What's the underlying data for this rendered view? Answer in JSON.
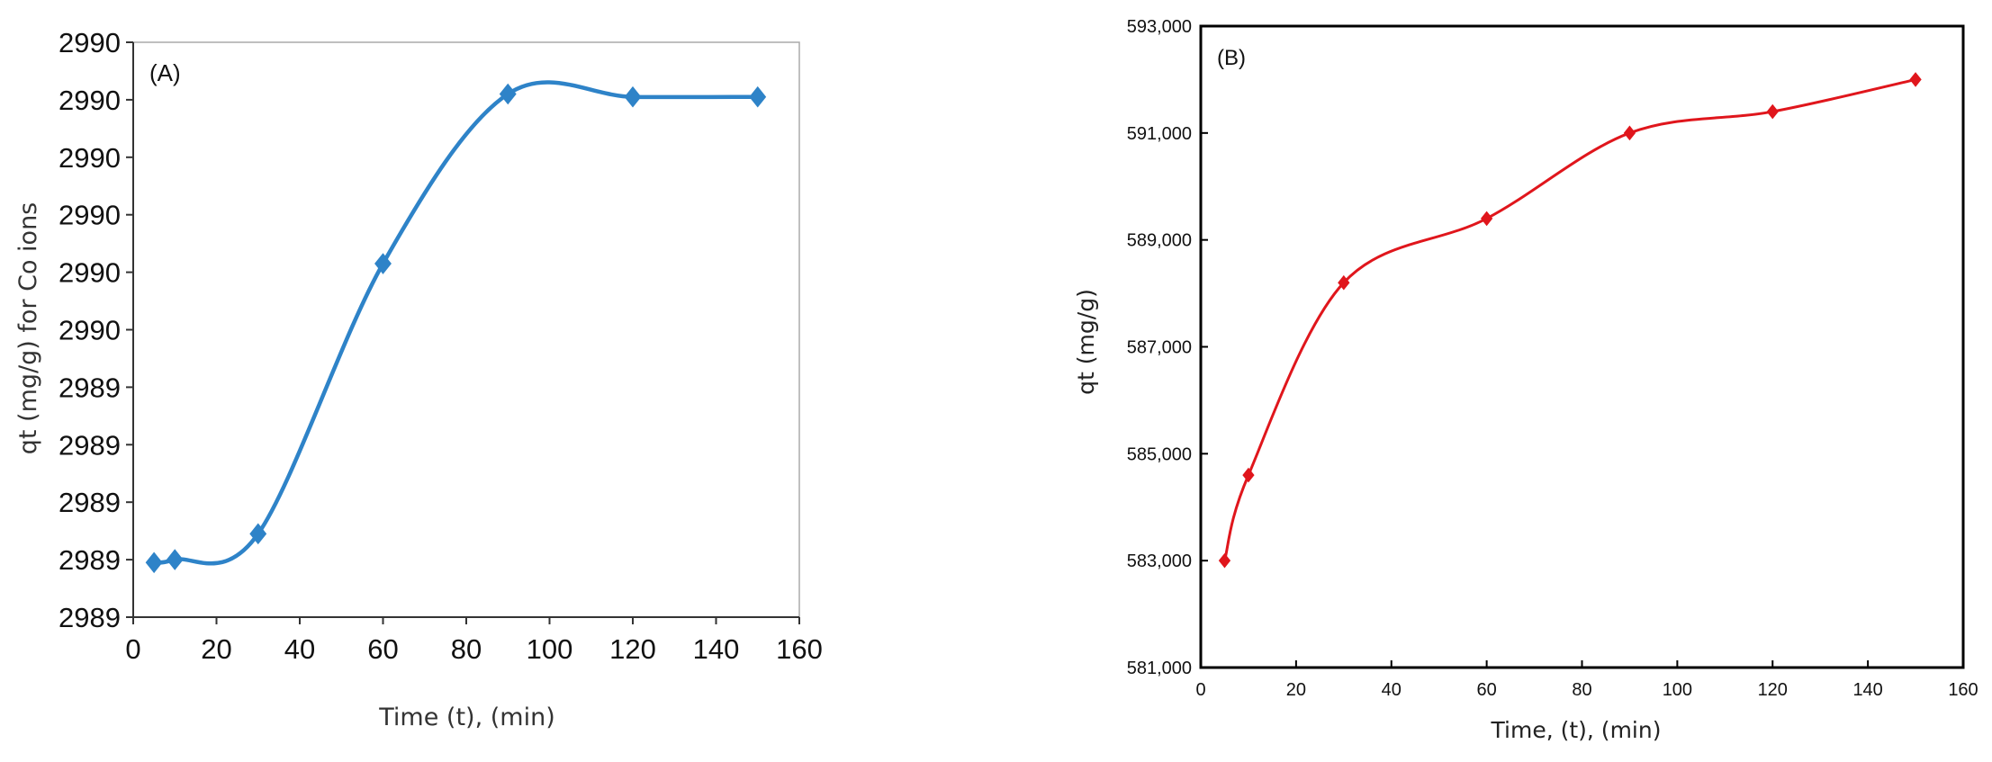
{
  "chart_data": [
    {
      "type": "line",
      "panel_label": "(A)",
      "xlabel": "Time (t), (min)",
      "ylabel": "qt (mg/g) for Co ions",
      "xlim": [
        0,
        160
      ],
      "x_ticks": [
        "0",
        "20",
        "40",
        "60",
        "80",
        "100",
        "120",
        "140",
        "160"
      ],
      "y_ticks": [
        "2989",
        "2989",
        "2989",
        "2989",
        "2989",
        "2990",
        "2990",
        "2990",
        "2990",
        "2990",
        "2990"
      ],
      "ylim": [
        2988.8,
        2990.8
      ],
      "grid": false,
      "smooth": true,
      "marker": "diamond",
      "color": "#2e83c8",
      "series": [
        {
          "x": [
            5,
            10,
            30,
            60,
            90,
            120,
            150
          ],
          "y": [
            2988.99,
            2989.0,
            2989.09,
            2990.03,
            2990.62,
            2990.61,
            2990.61
          ]
        }
      ]
    },
    {
      "type": "line",
      "panel_label": "(B)",
      "xlabel": "Time, (t), (min)",
      "ylabel": "qt (mg/g)",
      "xlim": [
        0,
        160
      ],
      "ylim": [
        581000,
        593000
      ],
      "x_ticks": [
        "0",
        "20",
        "40",
        "60",
        "80",
        "100",
        "120",
        "140",
        "160"
      ],
      "y_ticks": [
        "581,000",
        "583,000",
        "585,000",
        "587,000",
        "589,000",
        "591,000",
        "593,000"
      ],
      "grid": false,
      "smooth": true,
      "marker": "diamond",
      "color": "#e0161c",
      "series": [
        {
          "x": [
            5,
            10,
            30,
            60,
            90,
            120,
            150
          ],
          "y": [
            583000,
            584600,
            588200,
            589400,
            591000,
            591400,
            592000
          ]
        }
      ]
    }
  ]
}
